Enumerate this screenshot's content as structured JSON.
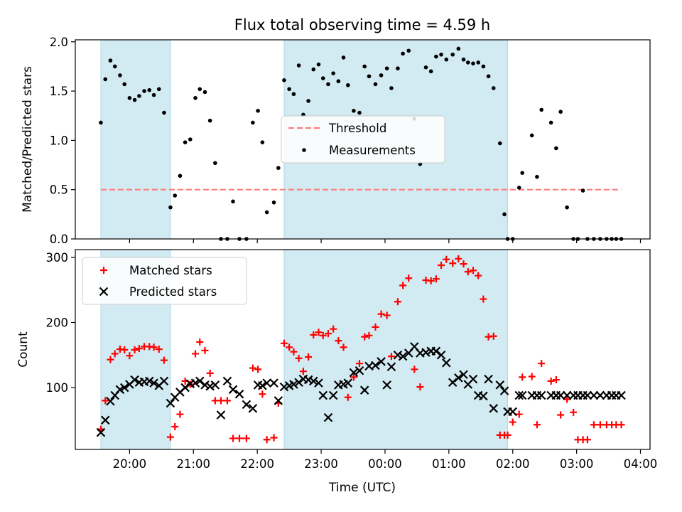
{
  "figure": {
    "title": "Flux total observing time = 4.59 h",
    "xlabel": "Time (UTC)"
  },
  "colors": {
    "shade": "#add8e6",
    "threshold": "#ff7f7f",
    "measurement": "#000000",
    "matched": "#ff0000",
    "predicted": "#000000"
  },
  "chart_data": [
    {
      "type": "scatter",
      "panel": "top",
      "ylabel": "Matched/Predicted stars",
      "xlim": [
        19.15,
        28.15
      ],
      "ylim": [
        0,
        2.02
      ],
      "x_tick_labels": [
        "20:00",
        "21:00",
        "22:00",
        "23:00",
        "00:00",
        "01:00",
        "02:00",
        "03:00",
        "04:00"
      ],
      "y_ticks": [
        0.0,
        0.5,
        1.0,
        1.5,
        2.0
      ],
      "y_tick_labels": [
        "0.0",
        "0.5",
        "1.0",
        "1.5",
        "2.0"
      ],
      "shaded_intervals": [
        [
          19.55,
          20.64
        ],
        [
          22.42,
          25.92
        ]
      ],
      "threshold": {
        "name": "Threshold",
        "y": 0.5,
        "x": [
          19.55,
          27.7
        ]
      },
      "legend": {
        "placement": "center",
        "entries": [
          "Threshold",
          "Measurements"
        ]
      },
      "series": [
        {
          "name": "Measurements",
          "x": [
            19.55,
            19.62,
            19.7,
            19.77,
            19.85,
            19.92,
            20.0,
            20.08,
            20.15,
            20.23,
            20.31,
            20.38,
            20.46,
            20.54,
            20.64,
            20.71,
            20.79,
            20.87,
            20.95,
            21.03,
            21.1,
            21.18,
            21.26,
            21.34,
            21.43,
            21.53,
            21.62,
            21.72,
            21.83,
            21.93,
            22.01,
            22.08,
            22.15,
            22.26,
            22.33,
            22.42,
            22.5,
            22.57,
            22.65,
            22.72,
            22.8,
            22.88,
            22.96,
            23.03,
            23.11,
            23.19,
            23.27,
            23.35,
            23.42,
            23.51,
            23.6,
            23.68,
            23.75,
            23.85,
            23.94,
            24.03,
            24.1,
            24.2,
            24.28,
            24.37,
            24.46,
            24.55,
            24.64,
            24.72,
            24.8,
            24.88,
            24.96,
            25.06,
            25.15,
            25.23,
            25.3,
            25.38,
            25.46,
            25.54,
            25.62,
            25.7,
            25.8,
            25.87,
            25.92,
            26.0,
            26.1,
            26.15,
            26.3,
            26.38,
            26.45,
            26.6,
            26.68,
            26.75,
            26.85,
            26.95,
            27.02,
            27.1,
            27.17,
            27.27,
            27.37,
            27.47,
            27.55,
            27.62,
            27.7
          ],
          "y": [
            1.18,
            1.62,
            1.81,
            1.75,
            1.66,
            1.57,
            1.43,
            1.41,
            1.45,
            1.5,
            1.51,
            1.46,
            1.52,
            1.28,
            0.32,
            0.44,
            0.64,
            0.98,
            1.01,
            1.43,
            1.52,
            1.49,
            1.2,
            0.77,
            0.0,
            0.0,
            0.38,
            0.0,
            0.0,
            1.18,
            1.3,
            0.98,
            0.27,
            0.37,
            0.72,
            1.61,
            1.52,
            1.47,
            1.76,
            1.26,
            1.4,
            1.72,
            1.77,
            1.63,
            1.57,
            1.68,
            1.6,
            1.84,
            1.56,
            1.3,
            1.28,
            1.75,
            1.65,
            1.57,
            1.66,
            1.73,
            1.53,
            1.73,
            1.88,
            1.91,
            1.22,
            0.76,
            1.74,
            1.7,
            1.85,
            1.87,
            1.82,
            1.87,
            1.93,
            1.82,
            1.79,
            1.78,
            1.79,
            1.75,
            1.65,
            1.53,
            0.97,
            0.25,
            0.0,
            0.0,
            0.52,
            0.67,
            1.05,
            0.63,
            1.31,
            1.18,
            0.92,
            1.29,
            0.32,
            0.0,
            0.0,
            0.49,
            0.0,
            0.0,
            0.0,
            0.0,
            0.0,
            0.0,
            0.0
          ]
        }
      ]
    },
    {
      "type": "scatter",
      "panel": "bottom",
      "ylabel": "Count",
      "xlabel": "Time (UTC)",
      "xlim": [
        19.15,
        28.15
      ],
      "ylim": [
        5,
        312
      ],
      "x_tick_labels": [
        "20:00",
        "21:00",
        "22:00",
        "23:00",
        "00:00",
        "01:00",
        "02:00",
        "03:00",
        "04:00"
      ],
      "y_ticks": [
        100,
        200,
        300
      ],
      "y_tick_labels": [
        "100",
        "200",
        "300"
      ],
      "shaded_intervals": [
        [
          19.55,
          20.64
        ],
        [
          22.42,
          25.92
        ]
      ],
      "legend": {
        "placement": "top-left",
        "entries": [
          "Matched stars",
          "Predicted stars"
        ]
      },
      "series": [
        {
          "name": "Matched stars",
          "marker": "plus",
          "x": [
            19.55,
            19.62,
            19.7,
            19.77,
            19.85,
            19.92,
            20.0,
            20.08,
            20.15,
            20.23,
            20.31,
            20.38,
            20.46,
            20.54,
            20.64,
            20.71,
            20.79,
            20.87,
            20.95,
            21.03,
            21.1,
            21.18,
            21.26,
            21.34,
            21.43,
            21.53,
            21.62,
            21.72,
            21.83,
            21.93,
            22.01,
            22.08,
            22.15,
            22.26,
            22.33,
            22.42,
            22.5,
            22.57,
            22.65,
            22.72,
            22.8,
            22.88,
            22.96,
            23.03,
            23.11,
            23.19,
            23.27,
            23.35,
            23.42,
            23.51,
            23.6,
            23.68,
            23.75,
            23.85,
            23.94,
            24.03,
            24.1,
            24.2,
            24.28,
            24.37,
            24.46,
            24.55,
            24.64,
            24.72,
            24.8,
            24.88,
            24.96,
            25.06,
            25.15,
            25.23,
            25.3,
            25.38,
            25.46,
            25.54,
            25.62,
            25.7,
            25.8,
            25.87,
            25.92,
            26.0,
            26.1,
            26.15,
            26.3,
            26.38,
            26.45,
            26.6,
            26.68,
            26.75,
            26.85,
            26.95,
            27.02,
            27.1,
            27.17,
            27.27,
            27.37,
            27.47,
            27.55,
            27.62,
            27.7
          ],
          "y": [
            36,
            80,
            143,
            152,
            159,
            158,
            149,
            158,
            160,
            163,
            163,
            162,
            159,
            142,
            24,
            40,
            59,
            110,
            105,
            152,
            170,
            157,
            122,
            80,
            80,
            80,
            22,
            22,
            22,
            130,
            128,
            90,
            20,
            23,
            76,
            168,
            162,
            155,
            145,
            125,
            147,
            181,
            185,
            180,
            183,
            190,
            172,
            162,
            85,
            116,
            137,
            178,
            180,
            193,
            213,
            211,
            148,
            232,
            257,
            268,
            128,
            101,
            265,
            264,
            267,
            288,
            297,
            291,
            298,
            290,
            278,
            280,
            272,
            236,
            178,
            179,
            27,
            27,
            27,
            47,
            59,
            116,
            117,
            43,
            137,
            110,
            112,
            58,
            82,
            62,
            20,
            20,
            20,
            43,
            43,
            43,
            43,
            43,
            43
          ]
        },
        {
          "name": "Predicted stars",
          "marker": "x",
          "x": [
            19.55,
            19.62,
            19.7,
            19.77,
            19.85,
            19.92,
            20.0,
            20.08,
            20.15,
            20.23,
            20.31,
            20.38,
            20.46,
            20.54,
            20.64,
            20.71,
            20.79,
            20.87,
            20.95,
            21.03,
            21.1,
            21.18,
            21.26,
            21.34,
            21.43,
            21.53,
            21.62,
            21.72,
            21.83,
            21.93,
            22.01,
            22.08,
            22.15,
            22.26,
            22.33,
            22.42,
            22.5,
            22.57,
            22.65,
            22.72,
            22.8,
            22.88,
            22.96,
            23.03,
            23.11,
            23.19,
            23.27,
            23.35,
            23.42,
            23.51,
            23.6,
            23.68,
            23.75,
            23.85,
            23.94,
            24.03,
            24.1,
            24.2,
            24.28,
            24.37,
            24.46,
            24.55,
            24.64,
            24.72,
            24.8,
            24.88,
            24.96,
            25.06,
            25.15,
            25.23,
            25.3,
            25.38,
            25.46,
            25.54,
            25.62,
            25.7,
            25.8,
            25.87,
            25.92,
            26.0,
            26.1,
            26.15,
            26.3,
            26.38,
            26.45,
            26.6,
            26.68,
            26.75,
            26.85,
            26.95,
            27.02,
            27.1,
            27.17,
            27.27,
            27.37,
            27.47,
            27.55,
            27.62,
            27.7
          ],
          "y": [
            31,
            50,
            79,
            88,
            97,
            100,
            105,
            112,
            108,
            109,
            110,
            107,
            103,
            110,
            76,
            85,
            93,
            100,
            106,
            107,
            110,
            104,
            102,
            104,
            58,
            110,
            97,
            90,
            74,
            68,
            104,
            103,
            107,
            107,
            80,
            101,
            103,
            105,
            108,
            113,
            112,
            110,
            107,
            88,
            54,
            88,
            104,
            105,
            107,
            123,
            126,
            96,
            133,
            134,
            140,
            104,
            132,
            150,
            148,
            153,
            163,
            153,
            154,
            156,
            156,
            150,
            138,
            108,
            115,
            120,
            105,
            113,
            88,
            87,
            113,
            68,
            104,
            95,
            63,
            63,
            88,
            88,
            88,
            88,
            88,
            88,
            88,
            88,
            88,
            88,
            88,
            88,
            88,
            88,
            88,
            88,
            88,
            88,
            88
          ]
        }
      ]
    }
  ]
}
